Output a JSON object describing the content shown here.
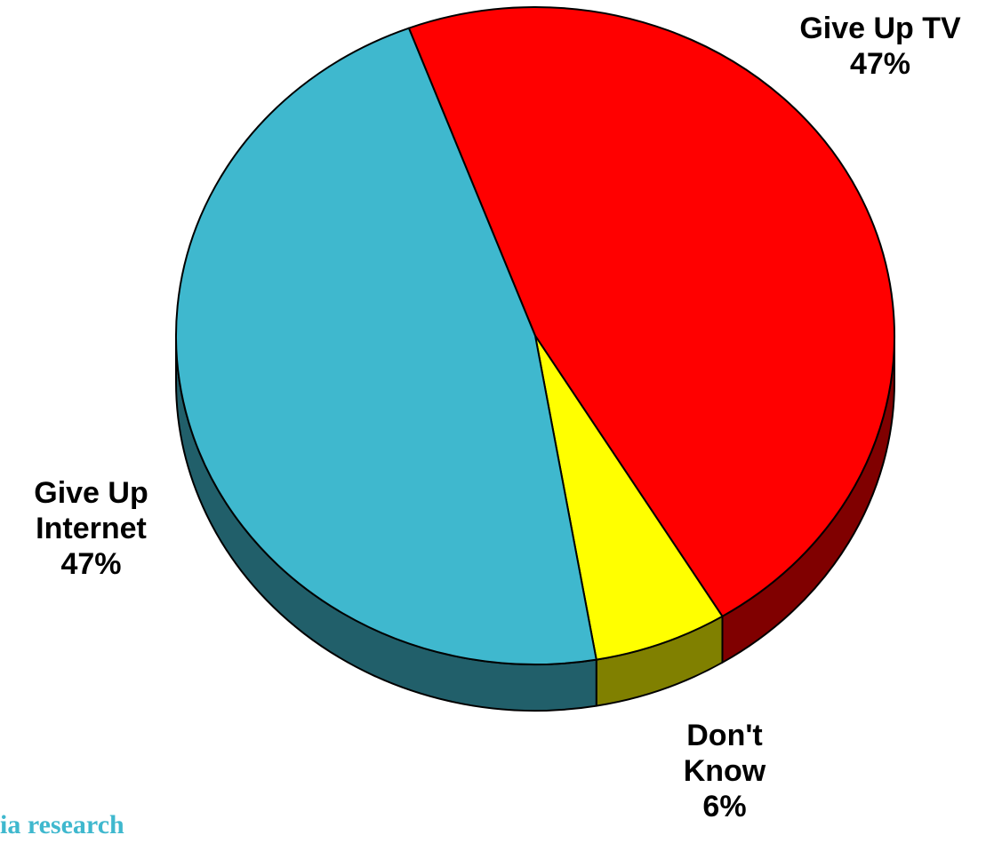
{
  "chart_data": {
    "type": "pie",
    "style": "3d",
    "slices": [
      {
        "label": "Give Up TV",
        "value": 47,
        "value_label": "47%",
        "color": "#ff0000",
        "side_color": "#800000"
      },
      {
        "label": "Don't Know",
        "value": 6,
        "value_label": "6%",
        "color": "#ffff00",
        "side_color": "#808000"
      },
      {
        "label": "Give Up Internet",
        "value": 47,
        "value_label": "47%",
        "color": "#3fb8ce",
        "side_color": "#215f6a"
      }
    ],
    "labels": {
      "tv": {
        "lines": [
          "Give Up TV",
          "47%"
        ]
      },
      "dontknow": {
        "lines": [
          "Don't",
          "Know",
          "6%"
        ]
      },
      "internet": {
        "lines": [
          "Give Up",
          "Internet",
          "47%"
        ]
      }
    }
  },
  "footer": {
    "text": "ia research"
  }
}
